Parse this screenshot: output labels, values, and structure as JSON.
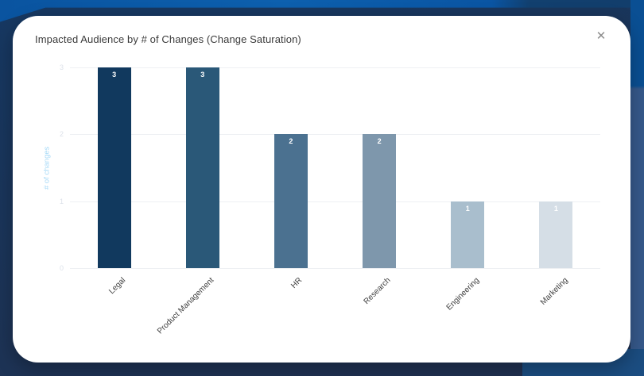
{
  "modal": {
    "title": "Impacted Audience by # of Changes (Change Saturation)",
    "close_label": "✕"
  },
  "chart_data": {
    "type": "bar",
    "title": "Impacted Audience by # of Changes (Change Saturation)",
    "categories": [
      "Legal",
      "Product Management",
      "HR",
      "Research",
      "Engineering",
      "Marketing"
    ],
    "values": [
      3,
      3,
      2,
      2,
      1,
      1
    ],
    "bar_colors": [
      "#11395e",
      "#2a5878",
      "#4b7190",
      "#7e97ac",
      "#a9becd",
      "#d5dee6"
    ],
    "xlabel": "",
    "ylabel": "# of changes",
    "yticks": [
      0,
      1,
      2,
      3
    ],
    "ylim": [
      0,
      3
    ],
    "grid": true,
    "legend": "none",
    "value_label_color": "#ffffff",
    "ylabel_color": "#a6d9f7"
  },
  "background": {
    "base_navy": "#1c3457",
    "accent_blue": "#0d60ae",
    "right_strip_blue": "#36598b",
    "bottom_band_blue": "#1b4d81"
  }
}
